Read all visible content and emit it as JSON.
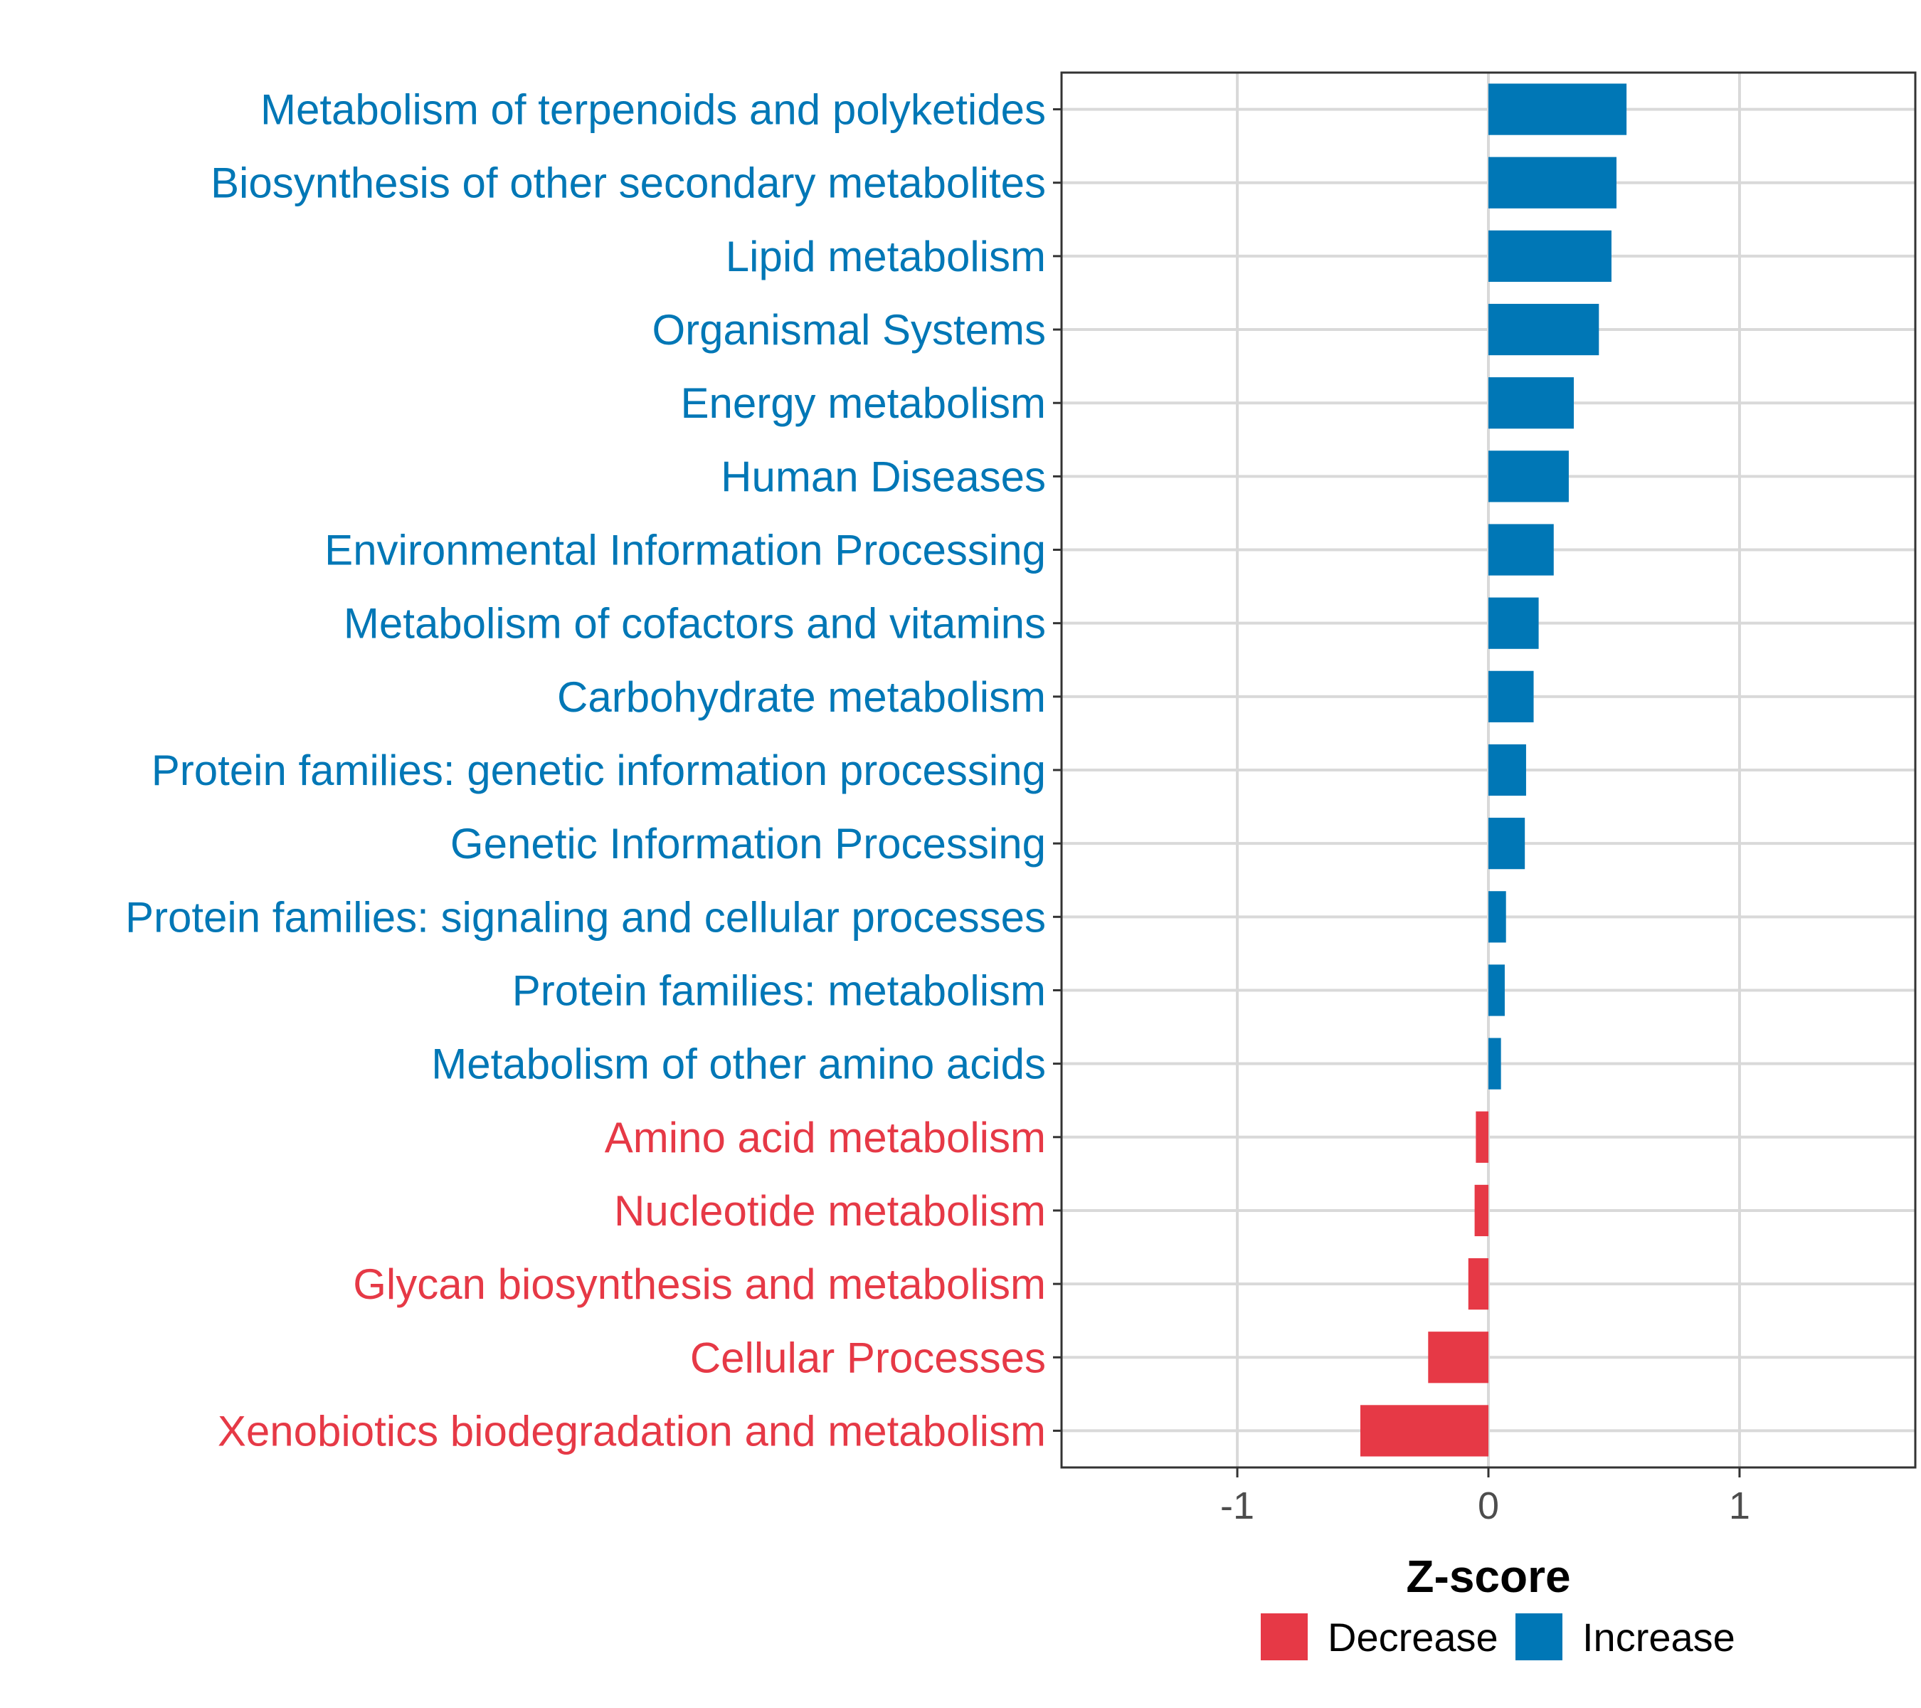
{
  "chart_data": {
    "type": "bar",
    "orientation": "horizontal",
    "xlabel": "Z-score",
    "ylabel": "",
    "xlim": [
      -1.7,
      1.7
    ],
    "xticks": [
      -1,
      0,
      1
    ],
    "xtick_labels": [
      "-1",
      "0",
      "1"
    ],
    "grid": true,
    "legend_position": "bottom",
    "colors": {
      "Decrease": "#E63946",
      "Increase": "#0077B6"
    },
    "categories": [
      "Metabolism of terpenoids and polyketides",
      "Biosynthesis of other secondary metabolites",
      "Lipid metabolism",
      "Organismal Systems",
      "Energy metabolism",
      "Human Diseases",
      "Environmental Information Processing",
      "Metabolism of cofactors and vitamins",
      "Carbohydrate metabolism",
      "Protein families: genetic information processing",
      "Genetic Information Processing",
      "Protein families: signaling and cellular processes",
      "Protein families: metabolism",
      "Metabolism of other amino acids",
      "Amino acid metabolism",
      "Nucleotide metabolism",
      "Glycan biosynthesis and metabolism",
      "Cellular Processes",
      "Xenobiotics biodegradation and metabolism"
    ],
    "values": [
      0.55,
      0.51,
      0.49,
      0.44,
      0.34,
      0.32,
      0.26,
      0.2,
      0.18,
      0.15,
      0.145,
      0.07,
      0.065,
      0.05,
      -0.05,
      -0.055,
      -0.08,
      -0.24,
      -0.51
    ],
    "groups": [
      "Increase",
      "Increase",
      "Increase",
      "Increase",
      "Increase",
      "Increase",
      "Increase",
      "Increase",
      "Increase",
      "Increase",
      "Increase",
      "Increase",
      "Increase",
      "Increase",
      "Decrease",
      "Decrease",
      "Decrease",
      "Decrease",
      "Decrease"
    ],
    "legend": [
      {
        "label": "Decrease",
        "color": "#E63946"
      },
      {
        "label": "Increase",
        "color": "#0077B6"
      }
    ]
  }
}
